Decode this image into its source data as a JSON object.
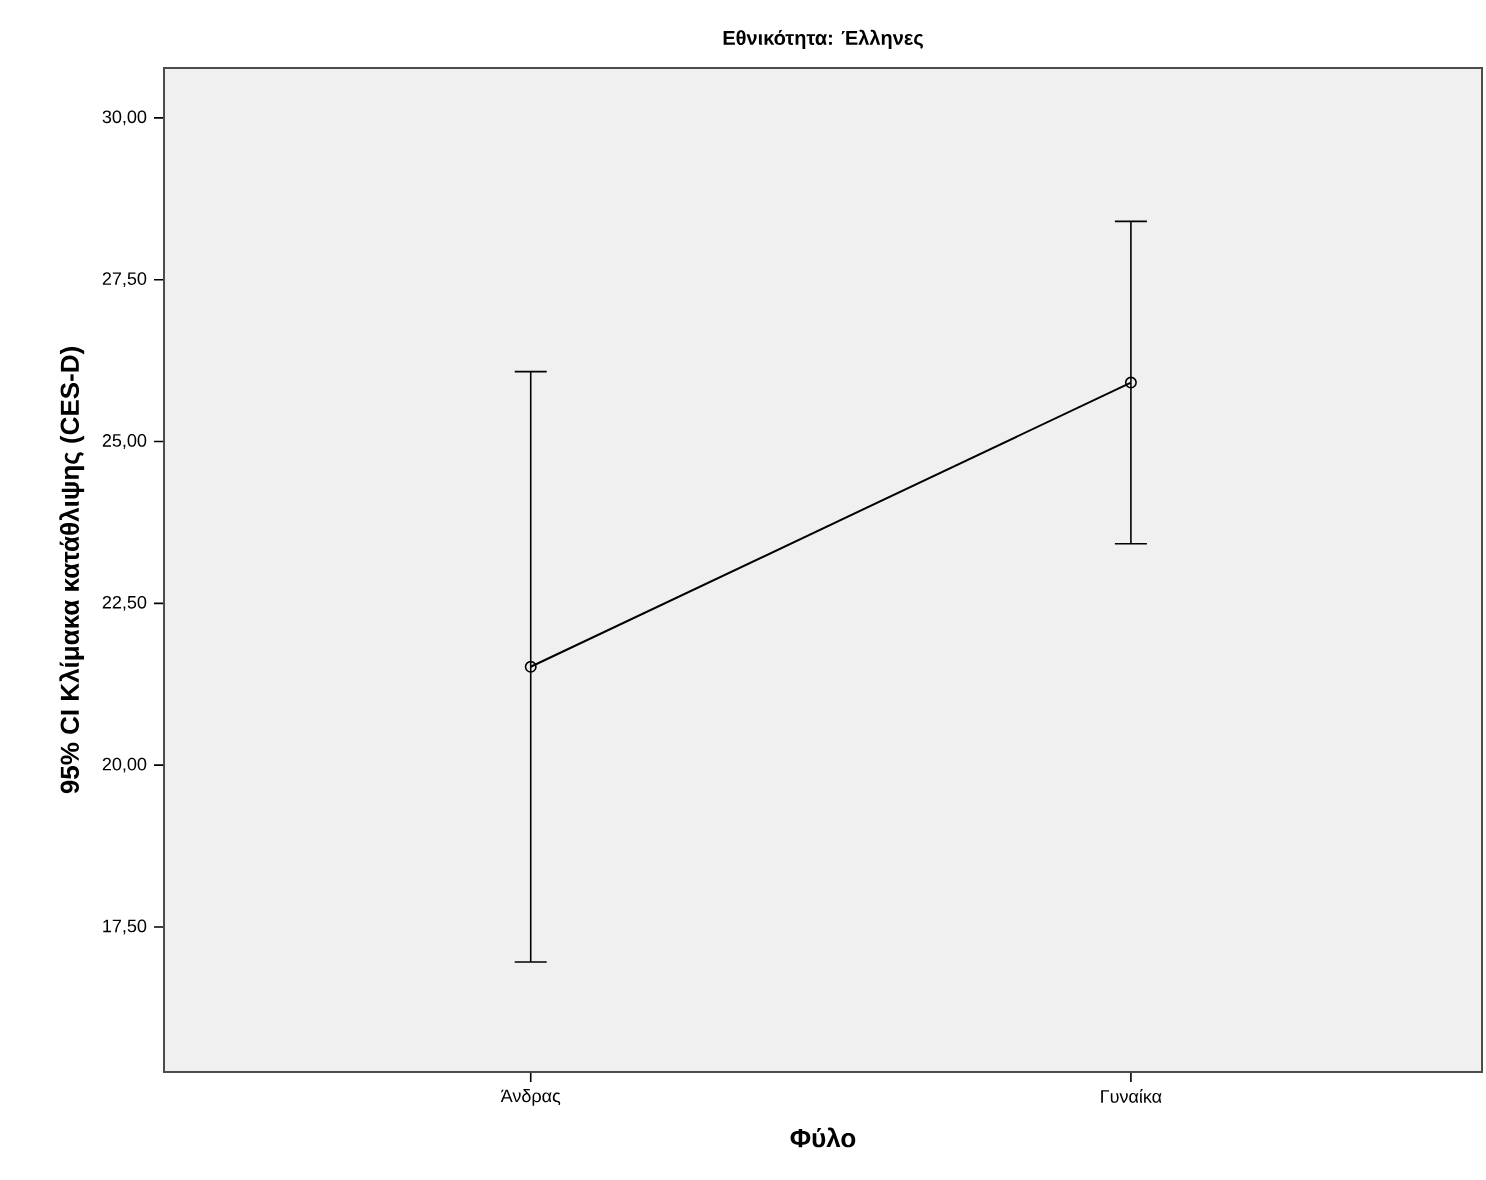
{
  "chart_data": {
    "type": "line",
    "title": "Εθνικότητα: Έλληνες",
    "xlabel": "Φύλο",
    "ylabel": "95% CI Κλίμακα κατάθλιψης (CES-D)",
    "categories": [
      "Άνδρας",
      "Γυναίκα"
    ],
    "series": [
      {
        "color": "#000000",
        "values": [
          21.52,
          25.91
        ],
        "errors": [
          4.56,
          2.49
        ]
      }
    ],
    "ylim": [
      15.26,
      30.77
    ],
    "yticks": [
      {
        "value": 17.5,
        "label": "17,50"
      },
      {
        "value": 20,
        "label": "20,00"
      },
      {
        "value": 22.5,
        "label": "22,50"
      },
      {
        "value": 25,
        "label": "25,00"
      },
      {
        "value": 27.5,
        "label": "27,50"
      },
      {
        "value": 30,
        "label": "30,00"
      }
    ],
    "marker": "circle",
    "line_style": "solid"
  }
}
